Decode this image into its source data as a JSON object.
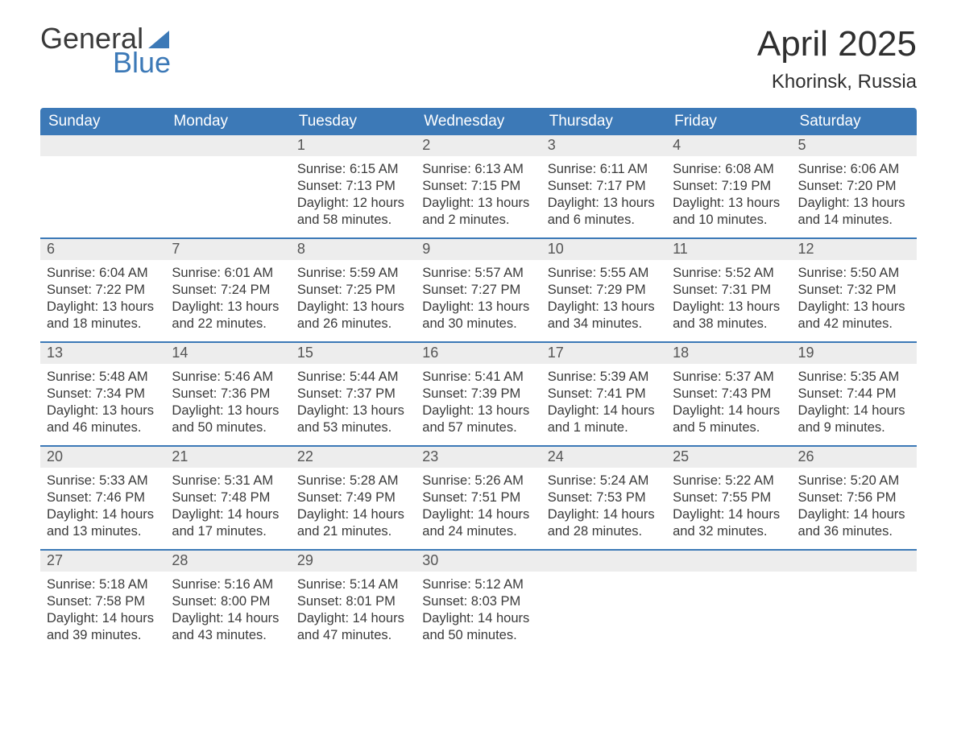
{
  "logo": {
    "word1": "General",
    "word2": "Blue"
  },
  "title": "April 2025",
  "location": "Khorinsk, Russia",
  "colors": {
    "brand": "#3c79b7",
    "header_text": "#ffffff",
    "daynum_bg": "#ededed",
    "text": "#3a3a3a",
    "background": "#ffffff"
  },
  "labels": {
    "sunrise": "Sunrise: ",
    "sunset": "Sunset: ",
    "daylight": "Daylight: "
  },
  "day_headers": [
    "Sunday",
    "Monday",
    "Tuesday",
    "Wednesday",
    "Thursday",
    "Friday",
    "Saturday"
  ],
  "weeks": [
    [
      null,
      null,
      {
        "n": "1",
        "sr": "6:15 AM",
        "ss": "7:13 PM",
        "dl": "12 hours and 58 minutes."
      },
      {
        "n": "2",
        "sr": "6:13 AM",
        "ss": "7:15 PM",
        "dl": "13 hours and 2 minutes."
      },
      {
        "n": "3",
        "sr": "6:11 AM",
        "ss": "7:17 PM",
        "dl": "13 hours and 6 minutes."
      },
      {
        "n": "4",
        "sr": "6:08 AM",
        "ss": "7:19 PM",
        "dl": "13 hours and 10 minutes."
      },
      {
        "n": "5",
        "sr": "6:06 AM",
        "ss": "7:20 PM",
        "dl": "13 hours and 14 minutes."
      }
    ],
    [
      {
        "n": "6",
        "sr": "6:04 AM",
        "ss": "7:22 PM",
        "dl": "13 hours and 18 minutes."
      },
      {
        "n": "7",
        "sr": "6:01 AM",
        "ss": "7:24 PM",
        "dl": "13 hours and 22 minutes."
      },
      {
        "n": "8",
        "sr": "5:59 AM",
        "ss": "7:25 PM",
        "dl": "13 hours and 26 minutes."
      },
      {
        "n": "9",
        "sr": "5:57 AM",
        "ss": "7:27 PM",
        "dl": "13 hours and 30 minutes."
      },
      {
        "n": "10",
        "sr": "5:55 AM",
        "ss": "7:29 PM",
        "dl": "13 hours and 34 minutes."
      },
      {
        "n": "11",
        "sr": "5:52 AM",
        "ss": "7:31 PM",
        "dl": "13 hours and 38 minutes."
      },
      {
        "n": "12",
        "sr": "5:50 AM",
        "ss": "7:32 PM",
        "dl": "13 hours and 42 minutes."
      }
    ],
    [
      {
        "n": "13",
        "sr": "5:48 AM",
        "ss": "7:34 PM",
        "dl": "13 hours and 46 minutes."
      },
      {
        "n": "14",
        "sr": "5:46 AM",
        "ss": "7:36 PM",
        "dl": "13 hours and 50 minutes."
      },
      {
        "n": "15",
        "sr": "5:44 AM",
        "ss": "7:37 PM",
        "dl": "13 hours and 53 minutes."
      },
      {
        "n": "16",
        "sr": "5:41 AM",
        "ss": "7:39 PM",
        "dl": "13 hours and 57 minutes."
      },
      {
        "n": "17",
        "sr": "5:39 AM",
        "ss": "7:41 PM",
        "dl": "14 hours and 1 minute."
      },
      {
        "n": "18",
        "sr": "5:37 AM",
        "ss": "7:43 PM",
        "dl": "14 hours and 5 minutes."
      },
      {
        "n": "19",
        "sr": "5:35 AM",
        "ss": "7:44 PM",
        "dl": "14 hours and 9 minutes."
      }
    ],
    [
      {
        "n": "20",
        "sr": "5:33 AM",
        "ss": "7:46 PM",
        "dl": "14 hours and 13 minutes."
      },
      {
        "n": "21",
        "sr": "5:31 AM",
        "ss": "7:48 PM",
        "dl": "14 hours and 17 minutes."
      },
      {
        "n": "22",
        "sr": "5:28 AM",
        "ss": "7:49 PM",
        "dl": "14 hours and 21 minutes."
      },
      {
        "n": "23",
        "sr": "5:26 AM",
        "ss": "7:51 PM",
        "dl": "14 hours and 24 minutes."
      },
      {
        "n": "24",
        "sr": "5:24 AM",
        "ss": "7:53 PM",
        "dl": "14 hours and 28 minutes."
      },
      {
        "n": "25",
        "sr": "5:22 AM",
        "ss": "7:55 PM",
        "dl": "14 hours and 32 minutes."
      },
      {
        "n": "26",
        "sr": "5:20 AM",
        "ss": "7:56 PM",
        "dl": "14 hours and 36 minutes."
      }
    ],
    [
      {
        "n": "27",
        "sr": "5:18 AM",
        "ss": "7:58 PM",
        "dl": "14 hours and 39 minutes."
      },
      {
        "n": "28",
        "sr": "5:16 AM",
        "ss": "8:00 PM",
        "dl": "14 hours and 43 minutes."
      },
      {
        "n": "29",
        "sr": "5:14 AM",
        "ss": "8:01 PM",
        "dl": "14 hours and 47 minutes."
      },
      {
        "n": "30",
        "sr": "5:12 AM",
        "ss": "8:03 PM",
        "dl": "14 hours and 50 minutes."
      },
      null,
      null,
      null
    ]
  ]
}
